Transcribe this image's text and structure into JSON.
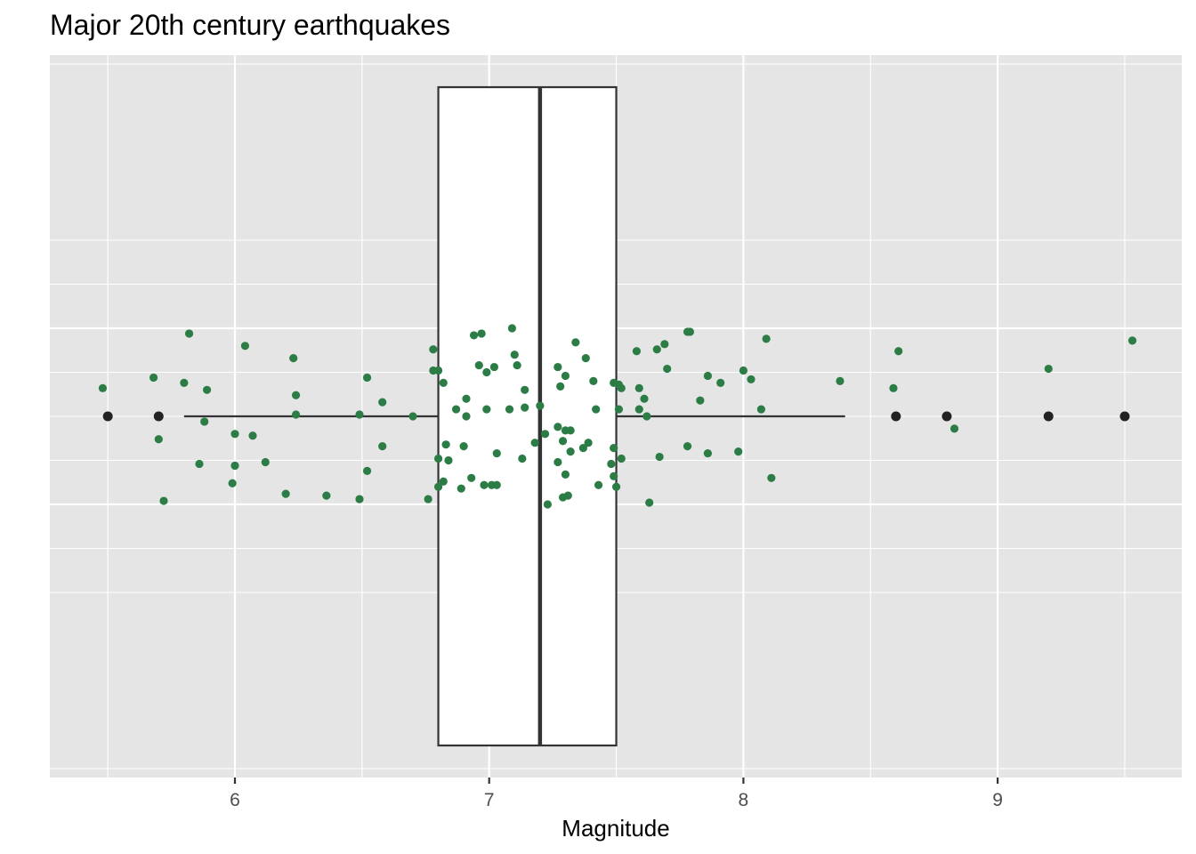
{
  "chart_data": {
    "type": "boxplot",
    "title": "Major 20th century earthquakes",
    "xlabel": "Magnitude",
    "ylabel": "",
    "xlim": [
      5.35,
      9.65
    ],
    "x_ticks": [
      6,
      7,
      8,
      9
    ],
    "grid": true,
    "legend": "none",
    "colors": {
      "panel_background": "#e5e5e5",
      "grid": "#ffffff",
      "box_fill": "#ffffff",
      "box_outline": "#333333",
      "outlier": "#222222",
      "jitter_points": "#2b7d45"
    },
    "box": {
      "lower_whisker": 5.8,
      "q1": 6.8,
      "median": 7.2,
      "q3": 7.5,
      "upper_whisker": 8.4
    },
    "outliers": [
      5.5,
      5.7,
      8.6,
      8.8,
      9.2,
      9.5
    ],
    "jitter_points": [
      {
        "x": 5.48,
        "y": 0.16
      },
      {
        "x": 5.68,
        "y": 0.22
      },
      {
        "x": 5.7,
        "y": -0.13
      },
      {
        "x": 5.72,
        "y": -0.48
      },
      {
        "x": 5.8,
        "y": 0.19
      },
      {
        "x": 5.82,
        "y": 0.47
      },
      {
        "x": 5.86,
        "y": -0.27
      },
      {
        "x": 5.88,
        "y": -0.03
      },
      {
        "x": 5.89,
        "y": 0.15
      },
      {
        "x": 5.99,
        "y": -0.38
      },
      {
        "x": 6.0,
        "y": -0.1
      },
      {
        "x": 6.0,
        "y": -0.28
      },
      {
        "x": 6.04,
        "y": 0.4
      },
      {
        "x": 6.07,
        "y": -0.11
      },
      {
        "x": 6.12,
        "y": -0.26
      },
      {
        "x": 6.2,
        "y": -0.44
      },
      {
        "x": 6.23,
        "y": 0.33
      },
      {
        "x": 6.24,
        "y": 0.12
      },
      {
        "x": 6.24,
        "y": 0.01
      },
      {
        "x": 6.36,
        "y": -0.45
      },
      {
        "x": 6.49,
        "y": 0.01
      },
      {
        "x": 6.49,
        "y": -0.47
      },
      {
        "x": 6.52,
        "y": 0.22
      },
      {
        "x": 6.52,
        "y": -0.31
      },
      {
        "x": 6.58,
        "y": 0.08
      },
      {
        "x": 6.58,
        "y": -0.17
      },
      {
        "x": 6.7,
        "y": 0.0
      },
      {
        "x": 6.76,
        "y": -0.47
      },
      {
        "x": 6.78,
        "y": 0.38
      },
      {
        "x": 6.78,
        "y": 0.26
      },
      {
        "x": 6.8,
        "y": 0.26
      },
      {
        "x": 6.8,
        "y": -0.24
      },
      {
        "x": 6.8,
        "y": -0.4
      },
      {
        "x": 6.82,
        "y": 0.19
      },
      {
        "x": 6.82,
        "y": -0.37
      },
      {
        "x": 6.83,
        "y": -0.16
      },
      {
        "x": 6.84,
        "y": -0.25
      },
      {
        "x": 6.87,
        "y": 0.04
      },
      {
        "x": 6.89,
        "y": -0.41
      },
      {
        "x": 6.9,
        "y": -0.17
      },
      {
        "x": 6.91,
        "y": 0.1
      },
      {
        "x": 6.91,
        "y": 0.0
      },
      {
        "x": 6.93,
        "y": -0.35
      },
      {
        "x": 6.94,
        "y": 0.46
      },
      {
        "x": 6.96,
        "y": 0.29
      },
      {
        "x": 6.97,
        "y": 0.47
      },
      {
        "x": 6.98,
        "y": -0.39
      },
      {
        "x": 6.99,
        "y": 0.25
      },
      {
        "x": 6.99,
        "y": 0.04
      },
      {
        "x": 7.01,
        "y": -0.39
      },
      {
        "x": 7.02,
        "y": 0.28
      },
      {
        "x": 7.03,
        "y": -0.21
      },
      {
        "x": 7.03,
        "y": -0.39
      },
      {
        "x": 7.08,
        "y": 0.04
      },
      {
        "x": 7.09,
        "y": 0.5
      },
      {
        "x": 7.1,
        "y": 0.35
      },
      {
        "x": 7.11,
        "y": 0.29
      },
      {
        "x": 7.13,
        "y": -0.24
      },
      {
        "x": 7.14,
        "y": 0.15
      },
      {
        "x": 7.14,
        "y": 0.05
      },
      {
        "x": 7.18,
        "y": -0.15
      },
      {
        "x": 7.2,
        "y": 0.06
      },
      {
        "x": 7.22,
        "y": -0.1
      },
      {
        "x": 7.23,
        "y": -0.5
      },
      {
        "x": 7.27,
        "y": 0.28
      },
      {
        "x": 7.27,
        "y": -0.06
      },
      {
        "x": 7.27,
        "y": -0.26
      },
      {
        "x": 7.28,
        "y": 0.17
      },
      {
        "x": 7.29,
        "y": -0.14
      },
      {
        "x": 7.29,
        "y": -0.46
      },
      {
        "x": 7.3,
        "y": 0.23
      },
      {
        "x": 7.3,
        "y": -0.08
      },
      {
        "x": 7.3,
        "y": -0.33
      },
      {
        "x": 7.31,
        "y": -0.45
      },
      {
        "x": 7.32,
        "y": -0.08
      },
      {
        "x": 7.32,
        "y": -0.2
      },
      {
        "x": 7.34,
        "y": 0.42
      },
      {
        "x": 7.37,
        "y": -0.18
      },
      {
        "x": 7.38,
        "y": 0.33
      },
      {
        "x": 7.39,
        "y": -0.15
      },
      {
        "x": 7.41,
        "y": 0.2
      },
      {
        "x": 7.42,
        "y": 0.04
      },
      {
        "x": 7.43,
        "y": -0.39
      },
      {
        "x": 7.48,
        "y": -0.27
      },
      {
        "x": 7.49,
        "y": 0.19
      },
      {
        "x": 7.49,
        "y": -0.18
      },
      {
        "x": 7.49,
        "y": -0.34
      },
      {
        "x": 7.5,
        "y": -0.4
      },
      {
        "x": 7.51,
        "y": 0.04
      },
      {
        "x": 7.51,
        "y": 0.18
      },
      {
        "x": 7.52,
        "y": 0.16
      },
      {
        "x": 7.52,
        "y": -0.24
      },
      {
        "x": 7.58,
        "y": 0.37
      },
      {
        "x": 7.59,
        "y": 0.16
      },
      {
        "x": 7.59,
        "y": 0.04
      },
      {
        "x": 7.61,
        "y": 0.1
      },
      {
        "x": 7.62,
        "y": 0.0
      },
      {
        "x": 7.63,
        "y": -0.49
      },
      {
        "x": 7.66,
        "y": 0.38
      },
      {
        "x": 7.67,
        "y": -0.23
      },
      {
        "x": 7.69,
        "y": 0.41
      },
      {
        "x": 7.7,
        "y": 0.27
      },
      {
        "x": 7.78,
        "y": 0.48
      },
      {
        "x": 7.78,
        "y": -0.17
      },
      {
        "x": 7.79,
        "y": 0.48
      },
      {
        "x": 7.83,
        "y": 0.09
      },
      {
        "x": 7.86,
        "y": 0.23
      },
      {
        "x": 7.86,
        "y": -0.21
      },
      {
        "x": 7.91,
        "y": 0.19
      },
      {
        "x": 7.98,
        "y": -0.2
      },
      {
        "x": 8.0,
        "y": 0.26
      },
      {
        "x": 8.03,
        "y": 0.21
      },
      {
        "x": 8.07,
        "y": 0.04
      },
      {
        "x": 8.09,
        "y": 0.44
      },
      {
        "x": 8.11,
        "y": -0.35
      },
      {
        "x": 8.38,
        "y": 0.2
      },
      {
        "x": 8.59,
        "y": 0.16
      },
      {
        "x": 8.61,
        "y": 0.37
      },
      {
        "x": 8.83,
        "y": -0.07
      },
      {
        "x": 9.2,
        "y": 0.27
      },
      {
        "x": 9.53,
        "y": 0.43
      }
    ]
  }
}
